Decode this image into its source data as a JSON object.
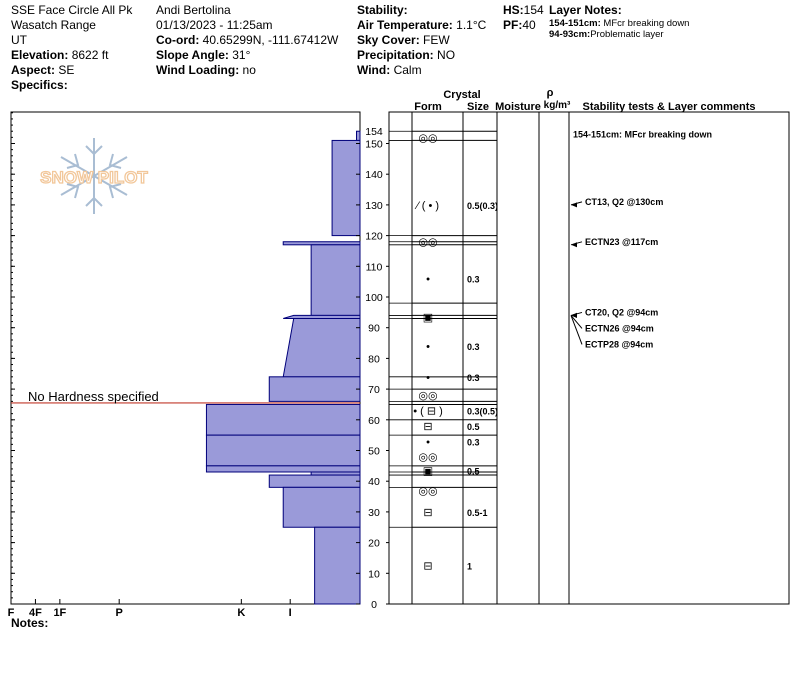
{
  "header": {
    "col1": {
      "location": "SSE Face Circle All Pk",
      "range": "Wasatch Range",
      "state": "UT",
      "elevation_label": "Elevation:",
      "elevation_value": "8622 ft",
      "aspect_label": "Aspect:",
      "aspect_value": "SE",
      "specifics_label": "Specifics:"
    },
    "col2": {
      "observer": "Andi Bertolina",
      "datetime": "01/13/2023 - 11:25am",
      "coord_label": "Co-ord:",
      "coord_value": "40.65299N, -111.67412W",
      "slope_label": "Slope Angle:",
      "slope_value": "31°",
      "wind_loading_label": "Wind Loading:",
      "wind_loading_value": "no"
    },
    "col3": {
      "stability_label": "Stability:",
      "air_temp_label": "Air Temperature:",
      "air_temp_value": "1.1°C",
      "sky_label": "Sky Cover:",
      "sky_value": "FEW",
      "precip_label": "Precipitation:",
      "precip_value": "NO",
      "wind_label": "Wind:",
      "wind_value": "Calm"
    },
    "col4": {
      "hs_label": "HS:",
      "hs_value": "154",
      "pf_label": "PF:",
      "pf_value": "40"
    },
    "layer_notes": {
      "title": "Layer Notes:",
      "items": [
        {
          "range": "154-151cm:",
          "text": "MFcr breaking down"
        },
        {
          "range": "94-93cm:",
          "text": "Problematic layer"
        }
      ]
    }
  },
  "table_headers": {
    "crystal": "Crystal",
    "form": "Form",
    "size": "Size",
    "moisture": "Moisture",
    "rho": "ρ",
    "density_unit": "kg/m³",
    "comments": "Stability tests & Layer comments"
  },
  "watermark": "SNOW PILOT",
  "no_hardness_text": "No Hardness specified",
  "notes_label": "Notes:",
  "colors": {
    "bar_fill": "#9a9ad9",
    "bar_stroke": "#00007a",
    "marker_line": "#c0392b",
    "watermark": "#f2c79a",
    "snowflake": "#a9bdd3"
  },
  "chart_data": {
    "type": "bar",
    "subtype": "snow-hardness-profile",
    "ylim": [
      0,
      160
    ],
    "hs": 154,
    "y_ticks": [
      0,
      10,
      20,
      30,
      40,
      50,
      60,
      70,
      80,
      90,
      100,
      110,
      120,
      130,
      140,
      150
    ],
    "hardness_scale": [
      "I",
      "K",
      "P",
      "1F",
      "4F",
      "F"
    ],
    "hardness_ticks": [
      {
        "label": "I",
        "value": 0.2
      },
      {
        "label": "K",
        "value": 0.34
      },
      {
        "label": "P",
        "value": 0.69
      },
      {
        "label": "1F",
        "value": 0.86
      },
      {
        "label": "4F",
        "value": 0.93
      },
      {
        "label": "F",
        "value": 1.0
      }
    ],
    "hardness_layers": [
      {
        "bottom": 151,
        "top": 154,
        "hardness": 0.01
      },
      {
        "bottom": 120,
        "top": 151,
        "hardness": 0.08
      },
      {
        "bottom": 117,
        "top": 118,
        "hardness": 0.22
      },
      {
        "bottom": 94,
        "top": 117,
        "hardness": 0.14
      },
      {
        "bottom": 93,
        "top": 94,
        "hardness": 0.19,
        "shape": "sloped",
        "hardness_top": 0.19,
        "hardness_bottom": 0.22
      },
      {
        "bottom": 74,
        "top": 93,
        "hardness": 0.2,
        "shape": "sloped",
        "hardness_top": 0.19,
        "hardness_bottom": 0.22
      },
      {
        "bottom": 66,
        "top": 74,
        "hardness": 0.26
      },
      {
        "bottom": 65,
        "top": 66,
        "hardness": 0.0,
        "note": "No Hardness specified"
      },
      {
        "bottom": 55,
        "top": 65,
        "hardness": 0.44
      },
      {
        "bottom": 45,
        "top": 55,
        "hardness": 0.44
      },
      {
        "bottom": 43,
        "top": 45,
        "hardness": 0.44
      },
      {
        "bottom": 42,
        "top": 43,
        "hardness": 0.14
      },
      {
        "bottom": 38,
        "top": 42,
        "hardness": 0.26
      },
      {
        "bottom": 25,
        "top": 38,
        "hardness": 0.22
      },
      {
        "bottom": 0,
        "top": 25,
        "hardness": 0.13
      }
    ],
    "layer_boundaries": [
      0,
      25,
      38,
      42,
      43,
      45,
      55,
      60,
      65,
      66,
      70,
      74,
      93,
      94,
      98,
      117,
      118,
      120,
      151,
      154
    ],
    "crystal_rows": [
      {
        "height": 152,
        "form": "MFcr",
        "form_symbol": "◎◎",
        "size": ""
      },
      {
        "height": 130,
        "form": "PP",
        "form_symbol": "⁄ ( • )",
        "size": "0.5(0.3)"
      },
      {
        "height": 118,
        "form": "MFcr",
        "form_symbol": "◎◎",
        "size": ""
      },
      {
        "height": 106,
        "form": "RG",
        "form_symbol": "•",
        "size": "0.3"
      },
      {
        "height": 93.5,
        "form": "FC",
        "form_symbol": "▣",
        "size": ""
      },
      {
        "height": 84,
        "form": "RG",
        "form_symbol": "•",
        "size": "0.3"
      },
      {
        "height": 74,
        "form": "RG",
        "form_symbol": "•",
        "size": "0.3"
      },
      {
        "height": 68,
        "form": "MFcr",
        "form_symbol": "◎◎",
        "size": ""
      },
      {
        "height": 63,
        "form": "RG/FC",
        "form_symbol": "• ( ⊟ )",
        "size": "0.3(0.5)"
      },
      {
        "height": 58,
        "form": "FC",
        "form_symbol": "⊟",
        "size": "0.5"
      },
      {
        "height": 53,
        "form": "RG",
        "form_symbol": "•",
        "size": "0.3"
      },
      {
        "height": 48,
        "form": "MFcr",
        "form_symbol": "◎◎",
        "size": ""
      },
      {
        "height": 43.5,
        "form": "FC",
        "form_symbol": "▣",
        "size": "0.5"
      },
      {
        "height": 37,
        "form": "MFcr",
        "form_symbol": "◎◎",
        "size": ""
      },
      {
        "height": 30,
        "form": "FC",
        "form_symbol": "⊟",
        "size": "0.5-1"
      },
      {
        "height": 12.5,
        "form": "FC",
        "form_symbol": "⊟",
        "size": "1"
      }
    ],
    "comments": [
      {
        "height": 152,
        "text": "154-151cm: MFcr breaking down",
        "arrow": false
      },
      {
        "height": 130,
        "text": "CT13, Q2 @130cm",
        "arrow": true
      },
      {
        "height": 117,
        "text": "ECTN23 @117cm",
        "arrow": true
      },
      {
        "height": 94,
        "text": "CT20, Q2 @94cm",
        "arrow": true
      },
      {
        "height": 94,
        "text": "ECTN26 @94cm",
        "arrow": true
      },
      {
        "height": 94,
        "text": "ECTP28 @94cm",
        "arrow": true
      }
    ]
  }
}
